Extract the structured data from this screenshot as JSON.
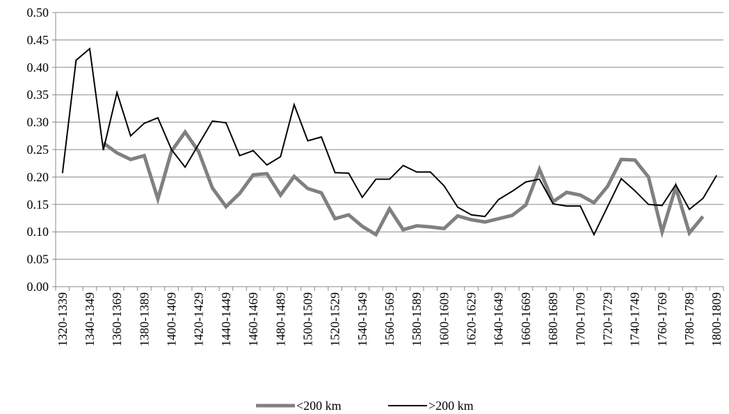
{
  "chart_data": {
    "type": "line",
    "categories": [
      "1320-1339",
      null,
      "1340-1349",
      null,
      "1360-1369",
      null,
      "1380-1389",
      null,
      "1400-1409",
      null,
      "1420-1429",
      null,
      "1440-1449",
      null,
      "1460-1469",
      null,
      "1480-1489",
      null,
      "1500-1509",
      null,
      "1520-1529",
      null,
      "1540-1549",
      null,
      "1560-1569",
      null,
      "1580-1589",
      null,
      "1600-1609",
      null,
      "1620-1629",
      null,
      "1640-1649",
      null,
      "1660-1669",
      null,
      "1680-1689",
      null,
      "1700-1709",
      null,
      "1720-1729",
      null,
      "1740-1749",
      null,
      "1760-1769",
      null,
      "1780-1789",
      null,
      "1800-1809"
    ],
    "series": [
      {
        "name": "<200 km",
        "color": "#808080",
        "width": 5,
        "values": [
          null,
          null,
          null,
          0.262,
          0.244,
          0.232,
          0.239,
          0.16,
          0.247,
          0.282,
          0.246,
          0.18,
          0.146,
          0.17,
          0.204,
          0.206,
          0.167,
          0.201,
          0.179,
          0.171,
          0.124,
          0.131,
          0.11,
          0.095,
          0.142,
          0.104,
          0.111,
          0.109,
          0.106,
          0.129,
          0.122,
          0.118,
          0.124,
          0.13,
          0.149,
          0.214,
          0.155,
          0.172,
          0.167,
          0.153,
          0.183,
          0.232,
          0.231,
          0.2,
          0.1,
          0.181,
          0.098,
          0.128,
          null
        ]
      },
      {
        "name": ">200 km",
        "color": "#000000",
        "width": 2,
        "values": [
          0.207,
          0.413,
          0.434,
          0.249,
          0.354,
          0.275,
          0.298,
          0.308,
          0.25,
          0.218,
          0.26,
          0.302,
          0.299,
          0.239,
          0.248,
          0.222,
          0.237,
          0.332,
          0.266,
          0.273,
          0.208,
          0.207,
          0.163,
          0.196,
          0.196,
          0.221,
          0.209,
          0.209,
          0.184,
          0.145,
          0.131,
          0.128,
          0.159,
          0.174,
          0.191,
          0.196,
          0.151,
          0.147,
          0.147,
          0.095,
          0.146,
          0.197,
          0.175,
          0.15,
          0.148,
          0.186,
          0.141,
          0.161,
          0.203
        ]
      }
    ],
    "ylim": [
      0,
      0.5
    ],
    "yticks": [
      {
        "value": 0,
        "label": "0.00"
      },
      {
        "value": 0.05,
        "label": "0.05"
      },
      {
        "value": 0.1,
        "label": "0.10"
      },
      {
        "value": 0.15,
        "label": "0.15"
      },
      {
        "value": 0.2,
        "label": "0.20"
      },
      {
        "value": 0.25,
        "label": "0.25"
      },
      {
        "value": 0.3,
        "label": "0.30"
      },
      {
        "value": 0.35,
        "label": "0.35"
      },
      {
        "value": 0.4,
        "label": "0.40"
      },
      {
        "value": 0.45,
        "label": "0.45"
      },
      {
        "value": 0.5,
        "label": "0.50"
      }
    ],
    "grid": true,
    "legend": "bottom"
  }
}
